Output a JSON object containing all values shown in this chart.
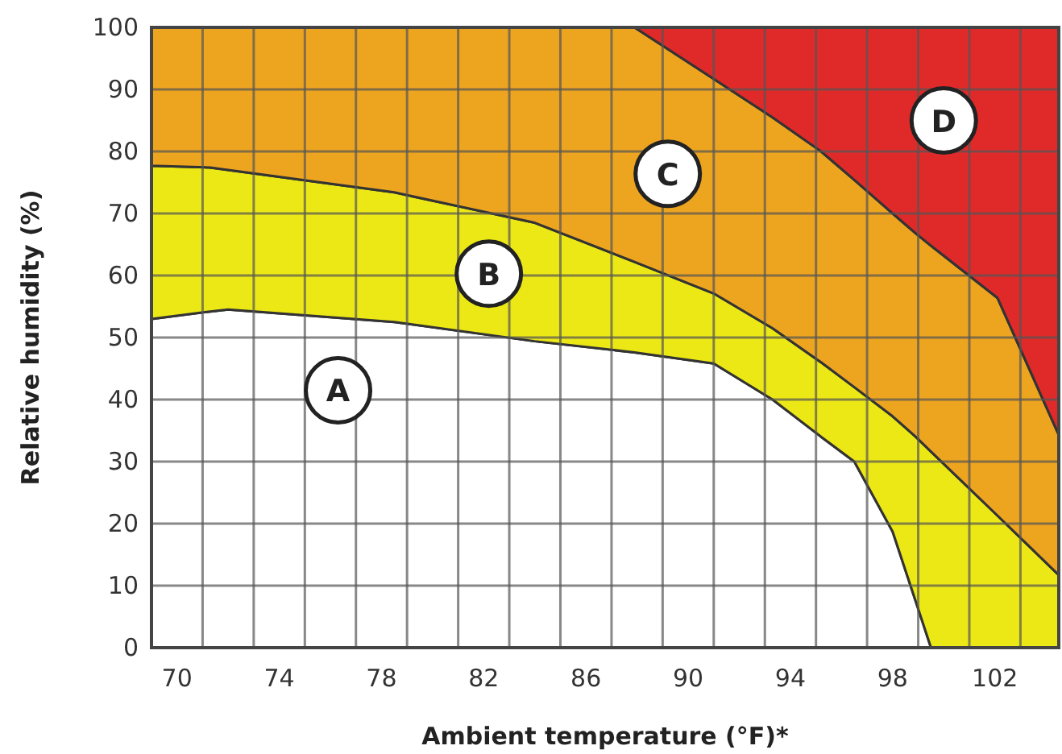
{
  "chart_data": {
    "type": "area",
    "xlabel": "Ambient temperature (°F)*",
    "ylabel": "Relative humidity (%)",
    "xlim": [
      69,
      104.5
    ],
    "ylim": [
      0,
      100
    ],
    "xticks": [
      {
        "value": 69,
        "label": null
      },
      70,
      {
        "value": 71,
        "label": null
      },
      {
        "value": 73,
        "label": null
      },
      74,
      {
        "value": 75,
        "label": null
      },
      {
        "value": 77,
        "label": null
      },
      78,
      {
        "value": 79,
        "label": null
      },
      {
        "value": 81,
        "label": null
      },
      82,
      {
        "value": 83,
        "label": null
      },
      {
        "value": 85,
        "label": null
      },
      86,
      {
        "value": 87,
        "label": null
      },
      {
        "value": 89,
        "label": null
      },
      90,
      {
        "value": 91,
        "label": null
      },
      {
        "value": 93,
        "label": null
      },
      94,
      {
        "value": 95,
        "label": null
      },
      {
        "value": 97,
        "label": null
      },
      98,
      {
        "value": 99,
        "label": null
      },
      {
        "value": 101,
        "label": null
      },
      102,
      {
        "value": 103,
        "label": null
      }
    ],
    "yticks": [
      0,
      10,
      20,
      30,
      40,
      50,
      60,
      70,
      80,
      90,
      100
    ],
    "grid": true,
    "stacked": true,
    "x": [
      69,
      71.3,
      72,
      78.5,
      84,
      87.9,
      91,
      93.3,
      95.2,
      96.5,
      98,
      98.9,
      99.5,
      102.1,
      104.5
    ],
    "series": [
      {
        "color": "#ffffff",
        "values": [
          53,
          54.2,
          54.5,
          52.5,
          49.4,
          47.6,
          45.8,
          40,
          34,
          30,
          18.7,
          7.5,
          0,
          0,
          0
        ]
      },
      {
        "color": "#ece816",
        "values": [
          24.7,
          23.2,
          22.5,
          20.9,
          19.1,
          14.6,
          11.3,
          11.5,
          12,
          12,
          18.6,
          26.5,
          31.6,
          21.3,
          11.7
        ]
      },
      {
        "color": "#eda520",
        "values": [
          22.3,
          22.6,
          23,
          26.6,
          31.5,
          37.8,
          34.6,
          34,
          34,
          33.4,
          32.7,
          32.8,
          33.2,
          35.1,
          22.6
        ]
      },
      {
        "color": "#e02a2a",
        "values": [
          0,
          0,
          0,
          0,
          0,
          0,
          8.3,
          14.5,
          20,
          24.6,
          30,
          33.2,
          35.2,
          43.6,
          65.7
        ]
      }
    ],
    "annotations": [
      {
        "text": "A",
        "x": 76.3,
        "y": 41.5
      },
      {
        "text": "B",
        "x": 82.2,
        "y": 60.3
      },
      {
        "text": "C",
        "x": 89.2,
        "y": 76.4
      },
      {
        "text": "D",
        "x": 100,
        "y": 85
      }
    ]
  }
}
